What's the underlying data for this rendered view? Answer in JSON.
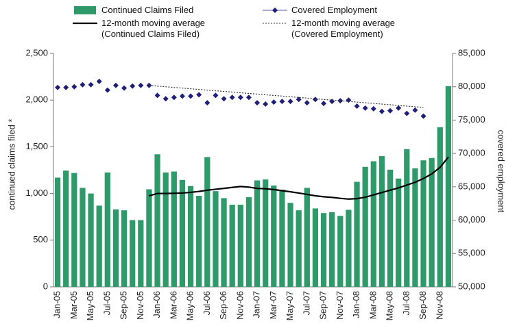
{
  "chart_data": {
    "type": "bar",
    "categories": [
      "Jan-05",
      null,
      "Mar-05",
      null,
      "May-05",
      null,
      "Jul-05",
      null,
      "Sep-05",
      null,
      "Nov-05",
      null,
      "Jan-06",
      null,
      "Mar-06",
      null,
      "May-06",
      null,
      "Jul-06",
      null,
      "Sep-06",
      null,
      "Nov-06",
      null,
      "Jan-07",
      null,
      "Mar-07",
      null,
      "May-07",
      null,
      "Jul-07",
      null,
      "Sep-07",
      null,
      "Nov-07",
      null,
      "Jan-08",
      null,
      "Mar-08",
      null,
      "May-08",
      null,
      "Jul-08",
      null,
      "Sep-08",
      null,
      "Nov-08",
      null
    ],
    "series": [
      {
        "name": "Continued Claims Filed",
        "type": "bar",
        "color": "#2e9a6a",
        "values": [
          1170,
          1245,
          1220,
          1060,
          1000,
          870,
          1225,
          830,
          820,
          715,
          715,
          1045,
          1420,
          1225,
          1235,
          1145,
          1080,
          975,
          1390,
          1025,
          950,
          880,
          880,
          960,
          1140,
          1150,
          1085,
          1040,
          900,
          820,
          1060,
          840,
          790,
          800,
          760,
          825,
          1125,
          1285,
          1345,
          1400,
          1255,
          1160,
          1475,
          1270,
          1355,
          1380,
          1710,
          2150
        ]
      },
      {
        "name": "12-month moving average (Continued Claims Filed)",
        "type": "line",
        "color": "#000000",
        "values": [
          null,
          null,
          null,
          null,
          null,
          null,
          null,
          null,
          null,
          null,
          null,
          975,
          1000,
          1000,
          1002,
          1005,
          1012,
          1022,
          1035,
          1045,
          1055,
          1065,
          1075,
          1068,
          1055,
          1050,
          1042,
          1030,
          1018,
          1005,
          990,
          975,
          965,
          958,
          948,
          940,
          945,
          960,
          985,
          1010,
          1035,
          1060,
          1090,
          1120,
          1160,
          1210,
          1280,
          1390
        ]
      },
      {
        "name": "Covered Employment",
        "type": "scatter",
        "axis": "y2",
        "color": "#1f1f7a",
        "values": [
          79900,
          79900,
          80000,
          80300,
          80300,
          80800,
          79500,
          80200,
          79800,
          80100,
          80200,
          80200,
          78700,
          78200,
          78400,
          78600,
          78600,
          78800,
          77600,
          78700,
          78200,
          78400,
          78400,
          78400,
          77600,
          77400,
          77700,
          77800,
          77800,
          78100,
          77600,
          78100,
          77500,
          77800,
          77900,
          78000,
          77100,
          76800,
          76700,
          76300,
          76400,
          76800,
          76000,
          76500,
          75600,
          null,
          null,
          null
        ]
      },
      {
        "name": "12-month moving average (Covered Employment)",
        "type": "dotted",
        "axis": "y2",
        "color": "#333333",
        "values": [
          null,
          null,
          null,
          null,
          null,
          null,
          null,
          null,
          null,
          null,
          null,
          80200,
          80100,
          80000,
          79900,
          79800,
          79700,
          79600,
          79500,
          79400,
          79300,
          79200,
          79100,
          79000,
          78900,
          78800,
          78700,
          78600,
          78500,
          78400,
          78300,
          78200,
          78100,
          78000,
          77900,
          77800,
          77700,
          77600,
          77500,
          77400,
          77300,
          77200,
          77100,
          77000,
          76900,
          null,
          null,
          null
        ]
      }
    ],
    "y_label": "continued claims filed *",
    "y2_label": "covered employment",
    "ylim": [
      0,
      2500
    ],
    "yticks": [
      0,
      500,
      {
        "value": 1000,
        "label": "1,000"
      },
      {
        "value": 1500,
        "label": "1,500"
      },
      {
        "value": 2000,
        "label": "2,000"
      },
      {
        "value": 2500,
        "label": "2,500"
      }
    ],
    "y2lim": [
      50000,
      85000
    ],
    "y2ticks": [
      {
        "value": 50000,
        "label": "50,000"
      },
      {
        "value": 55000,
        "label": "55,000"
      },
      {
        "value": 60000,
        "label": "60,000"
      },
      {
        "value": 65000,
        "label": "65,000"
      },
      {
        "value": 70000,
        "label": "70,000"
      },
      {
        "value": 75000,
        "label": "75,000"
      },
      {
        "value": 80000,
        "label": "80,000"
      },
      {
        "value": 85000,
        "label": "85,000"
      }
    ],
    "grid": false
  }
}
